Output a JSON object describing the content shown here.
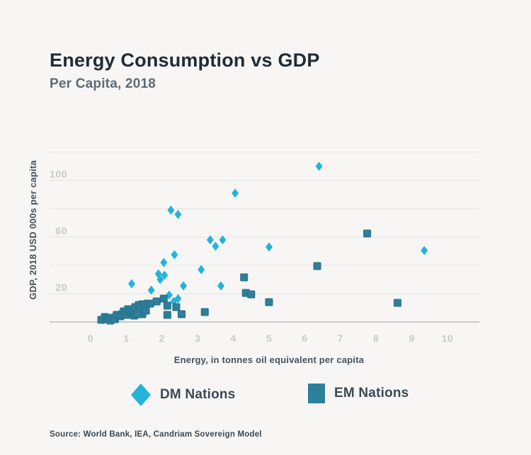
{
  "header": {
    "title": "Energy Consumption vs GDP",
    "subtitle": "Per Capita, 2018"
  },
  "chart_data": {
    "type": "scatter",
    "title": "Energy Consumption vs GDP",
    "subtitle": "Per Capita, 2018",
    "xlabel": "Energy, in tonnes oil equivalent per capita",
    "ylabel": "GDP, 2018 USD 000s per capita",
    "xlim": [
      0,
      10
    ],
    "ylim": [
      0,
      120
    ],
    "x_ticks": [
      0,
      1,
      2,
      3,
      4,
      5,
      6,
      7,
      8,
      9,
      10
    ],
    "y_tick_labels": [
      20,
      60,
      100
    ],
    "y_gridlines": [
      0,
      20,
      40,
      60,
      80,
      100,
      120
    ],
    "grid": "horizontal-only",
    "legend_position": "bottom-center",
    "series": [
      {
        "name": "DM Nations",
        "marker": "diamond",
        "color": "#25b3d9",
        "points": [
          [
            6.4,
            110
          ],
          [
            4.05,
            91
          ],
          [
            2.25,
            79
          ],
          [
            2.45,
            76
          ],
          [
            3.35,
            58
          ],
          [
            3.5,
            53.5
          ],
          [
            3.7,
            58
          ],
          [
            5.0,
            53
          ],
          [
            9.35,
            50.5
          ],
          [
            2.35,
            47.5
          ],
          [
            2.05,
            42
          ],
          [
            3.1,
            37
          ],
          [
            1.9,
            34
          ],
          [
            2.07,
            33
          ],
          [
            1.95,
            30
          ],
          [
            1.15,
            27
          ],
          [
            2.6,
            25.5
          ],
          [
            3.65,
            25.5
          ],
          [
            1.7,
            22.5
          ],
          [
            2.2,
            19
          ],
          [
            2.45,
            16.5
          ],
          [
            2.33,
            14.5
          ]
        ]
      },
      {
        "name": "EM Nations",
        "marker": "square",
        "color": "#2e7f99",
        "stroke": "#256e87",
        "points": [
          [
            7.75,
            62.5
          ],
          [
            6.35,
            39.5
          ],
          [
            8.6,
            13.5
          ],
          [
            4.3,
            31.5
          ],
          [
            4.35,
            20.5
          ],
          [
            4.5,
            19.5
          ],
          [
            5.0,
            14
          ],
          [
            3.2,
            7
          ],
          [
            2.55,
            5.5
          ],
          [
            2.15,
            5
          ],
          [
            1.85,
            14.5
          ],
          [
            2.05,
            16.5
          ],
          [
            2.15,
            11.5
          ],
          [
            2.4,
            10.5
          ],
          [
            1.45,
            12.5
          ],
          [
            1.45,
            5.5
          ],
          [
            0.3,
            1.5
          ],
          [
            0.4,
            3.5
          ],
          [
            0.45,
            2
          ],
          [
            0.5,
            2.5
          ],
          [
            0.55,
            1
          ],
          [
            0.63,
            3
          ],
          [
            0.68,
            2
          ],
          [
            0.73,
            5
          ],
          [
            0.83,
            4
          ],
          [
            0.88,
            5.5
          ],
          [
            0.93,
            7.5
          ],
          [
            1.0,
            5
          ],
          [
            1.05,
            9
          ],
          [
            1.1,
            8
          ],
          [
            1.15,
            6.5
          ],
          [
            1.22,
            4.5
          ],
          [
            1.25,
            10.5
          ],
          [
            1.3,
            5.5
          ],
          [
            1.35,
            12
          ],
          [
            1.4,
            10.5
          ],
          [
            1.5,
            12.5
          ],
          [
            1.55,
            8
          ],
          [
            1.6,
            13
          ],
          [
            1.67,
            13
          ]
        ]
      }
    ]
  },
  "colors": {
    "background": "#f7f6f4",
    "dm_accent": "#25b3d9",
    "em_accent": "#2e7f99",
    "title_text": "#202c36",
    "subtitle_text": "#5d6a76",
    "axis_title_text": "#45525e",
    "tick_text": "#c7c9ca",
    "gridline": "#e8e7e5",
    "axis_line": "#c9c8c6"
  },
  "source": "Source: World Bank, IEA, Candriam Sovereign Model"
}
